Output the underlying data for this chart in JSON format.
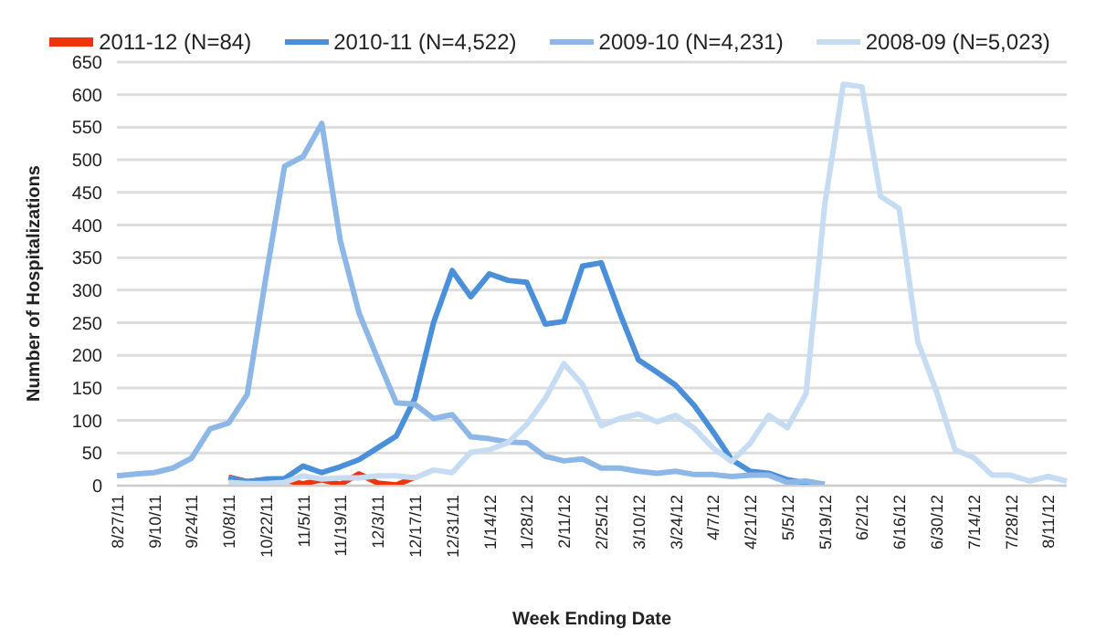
{
  "chart_data": {
    "type": "line",
    "xlabel": "Week Ending Date",
    "ylabel": "Number of Hospitalizations",
    "categories": [
      "8/27/11",
      null,
      "9/10/11",
      null,
      "9/24/11",
      null,
      "10/8/11",
      null,
      "10/22/11",
      null,
      "11/5/11",
      null,
      "11/19/11",
      null,
      "12/3/11",
      null,
      "12/17/11",
      null,
      "12/31/11",
      null,
      "1/14/12",
      null,
      "1/28/12",
      null,
      "2/11/12",
      null,
      "2/25/12",
      null,
      "3/10/12",
      null,
      "3/24/12",
      null,
      "4/7/12",
      null,
      "4/21/12",
      null,
      "5/5/12",
      null,
      "5/19/12",
      null,
      "6/2/12",
      null,
      "6/16/12",
      null,
      "6/30/12",
      null,
      "7/14/12",
      null,
      "7/28/12",
      null,
      "8/11/12",
      null
    ],
    "series": [
      {
        "name": "2011-12 (N=84)",
        "color": "#f0320f",
        "values": [
          null,
          null,
          null,
          null,
          null,
          null,
          13,
          6,
          9,
          8,
          3,
          9,
          2,
          18,
          4,
          1,
          13,
          null,
          null,
          null,
          null,
          null,
          null,
          null,
          null,
          null,
          null,
          null,
          null,
          null,
          null,
          null,
          null,
          null,
          null,
          null,
          null,
          null,
          null,
          null,
          null,
          null,
          null,
          null,
          null,
          null,
          null,
          null,
          null,
          null,
          null,
          null
        ]
      },
      {
        "name": "2010-11 (N=4,522)",
        "color": "#4a8fd9",
        "values": [
          null,
          null,
          null,
          null,
          null,
          null,
          12,
          6,
          10,
          11,
          30,
          20,
          29,
          40,
          58,
          76,
          134,
          250,
          330,
          290,
          325,
          315,
          312,
          248,
          252,
          337,
          342,
          265,
          193,
          174,
          154,
          123,
          83,
          40,
          22,
          19,
          9,
          4,
          2,
          null,
          null,
          null,
          null,
          null,
          null,
          null,
          null,
          null,
          null,
          null,
          null,
          null
        ]
      },
      {
        "name": "2009-10 (N=4,231)",
        "color": "#8cb7e6",
        "values": [
          15,
          18,
          20,
          27,
          42,
          87,
          96,
          140,
          320,
          490,
          505,
          556,
          375,
          265,
          195,
          127,
          125,
          103,
          109,
          75,
          72,
          67,
          66,
          45,
          38,
          41,
          27,
          27,
          22,
          19,
          22,
          17,
          17,
          14,
          16,
          16,
          5,
          7,
          2,
          null,
          null,
          null,
          null,
          null,
          null,
          null,
          null,
          null,
          null,
          null,
          null,
          null
        ]
      },
      {
        "name": "2008-09 (N=5,023)",
        "color": "#c6dcf2",
        "values": [
          null,
          null,
          null,
          null,
          null,
          null,
          5,
          3,
          3,
          5,
          15,
          10,
          12,
          12,
          15,
          15,
          12,
          24,
          20,
          51,
          55,
          66,
          94,
          134,
          187,
          155,
          92,
          103,
          110,
          98,
          108,
          88,
          58,
          37,
          65,
          108,
          89,
          141,
          430,
          616,
          612,
          444,
          425,
          221,
          145,
          55,
          43,
          16,
          16,
          7,
          14,
          7
        ]
      }
    ],
    "ylim": [
      0,
      650
    ],
    "yticks": [
      0,
      50,
      100,
      150,
      200,
      250,
      300,
      350,
      400,
      450,
      500,
      550,
      600,
      650
    ],
    "grid": "y",
    "legend": "top"
  }
}
